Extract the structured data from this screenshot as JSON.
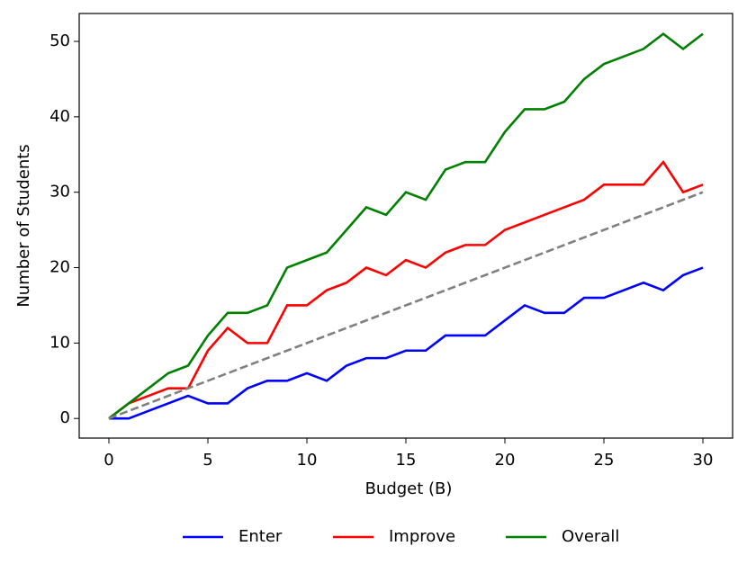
{
  "chart_data": {
    "type": "line",
    "x_label": "Budget (B)",
    "y_label": "Number of Students",
    "x": [
      0,
      1,
      2,
      3,
      4,
      5,
      6,
      7,
      8,
      9,
      10,
      11,
      12,
      13,
      14,
      15,
      16,
      17,
      18,
      19,
      20,
      21,
      22,
      23,
      24,
      25,
      26,
      27,
      28,
      29,
      30
    ],
    "series": [
      {
        "name": "Enter",
        "color": "#0000ff",
        "values": [
          0,
          0,
          1,
          2,
          3,
          2,
          2,
          4,
          5,
          5,
          6,
          5,
          7,
          8,
          8,
          9,
          9,
          11,
          11,
          11,
          13,
          15,
          14,
          14,
          16,
          16,
          17,
          18,
          17,
          19,
          20
        ]
      },
      {
        "name": "Improve",
        "color": "#ff0000",
        "values": [
          0,
          2,
          3,
          4,
          4,
          9,
          12,
          10,
          10,
          15,
          15,
          17,
          18,
          20,
          19,
          21,
          20,
          22,
          23,
          23,
          25,
          26,
          27,
          28,
          29,
          31,
          31,
          31,
          34,
          30,
          31
        ]
      },
      {
        "name": "Overall",
        "color": "#008000",
        "values": [
          0,
          2,
          4,
          6,
          7,
          11,
          14,
          14,
          15,
          20,
          21,
          22,
          25,
          28,
          27,
          30,
          29,
          33,
          34,
          34,
          38,
          41,
          41,
          42,
          45,
          47,
          48,
          49,
          51,
          49,
          51
        ]
      },
      {
        "color": "#808080",
        "dashed": true,
        "x": [
          0,
          30
        ],
        "values": [
          0,
          30
        ]
      }
    ],
    "xlim": [
      -1.5,
      31.5
    ],
    "ylim": [
      -2.6,
      53.7
    ],
    "xticks": [
      0,
      5,
      10,
      15,
      20,
      25,
      30
    ],
    "yticks": [
      0,
      10,
      20,
      30,
      40,
      50
    ],
    "grid": false,
    "legend": "bottom"
  }
}
